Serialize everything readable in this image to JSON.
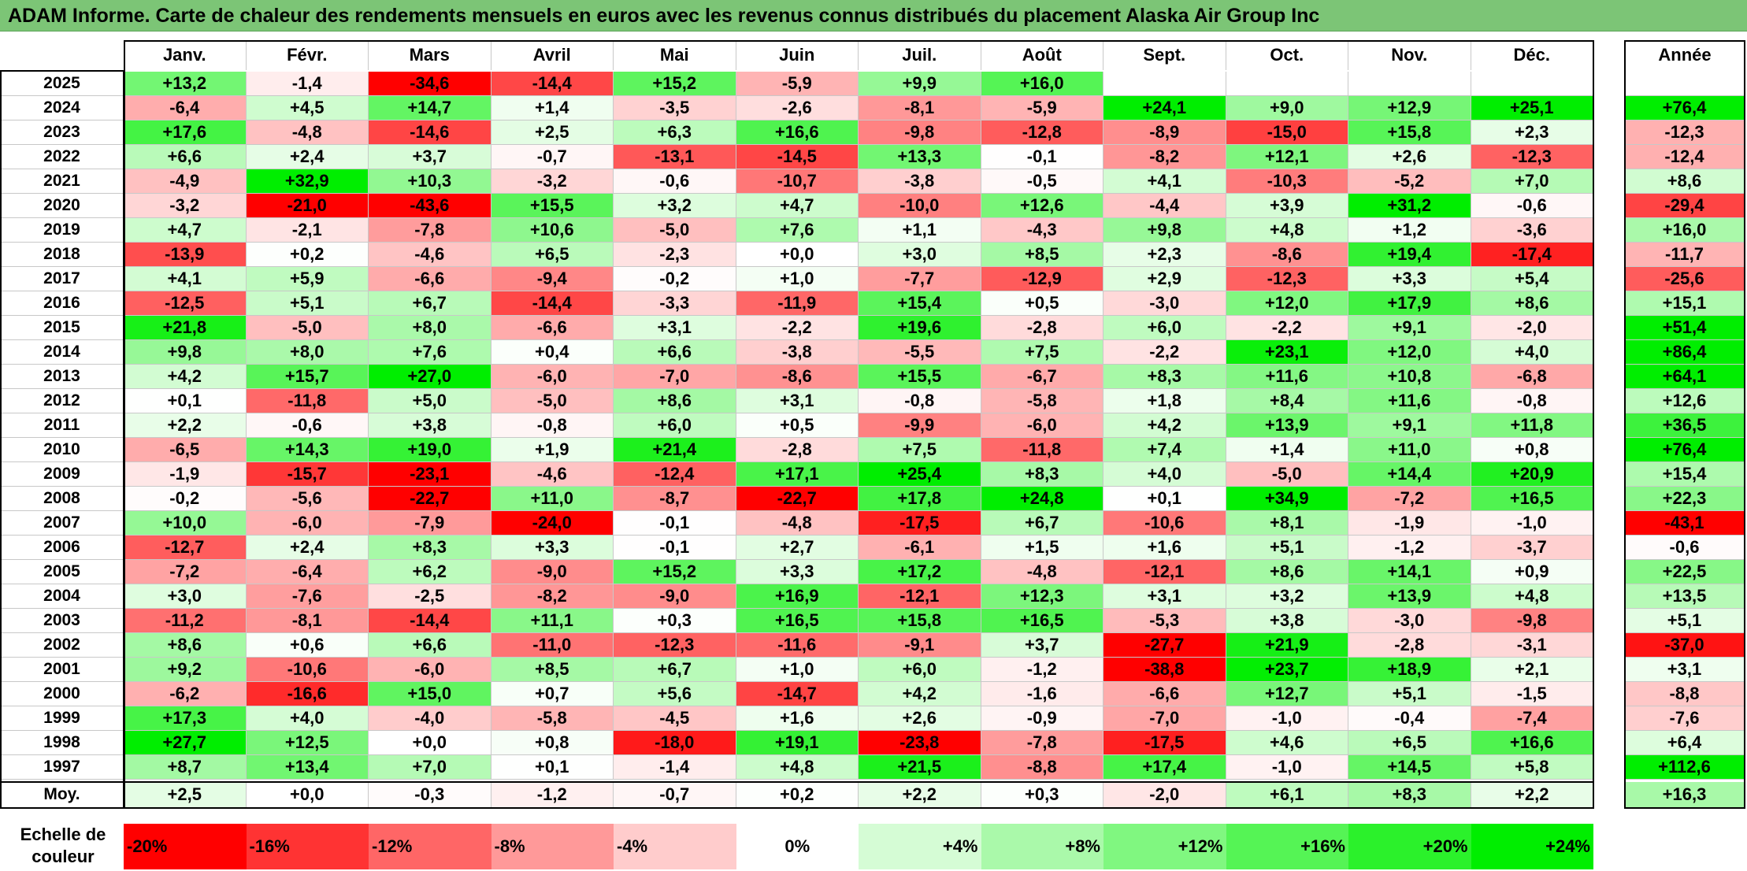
{
  "title": "ADAM Informe. Carte de chaleur des rendements mensuels en euros avec les revenus connus distribués du placement Alaska Air Group Inc",
  "colors": {
    "title_bg": "#7cc576",
    "negative_max": "#ff0000",
    "neutral": "#ffffff",
    "positive_max": "#00ee00"
  },
  "chart_data": {
    "type": "heatmap",
    "x": [
      "Janv.",
      "Févr.",
      "Mars",
      "Avril",
      "Mai",
      "Juin",
      "Juil.",
      "Août",
      "Sept.",
      "Oct.",
      "Nov.",
      "Déc."
    ],
    "annual_header": "Année",
    "rows": [
      {
        "year": "2025",
        "values": [
          "+13,2",
          "-1,4",
          "-34,6",
          "-14,4",
          "+15,2",
          "-5,9",
          "+9,9",
          "+16,0",
          "",
          "",
          "",
          ""
        ],
        "annual": ""
      },
      {
        "year": "2024",
        "values": [
          "-6,4",
          "+4,5",
          "+14,7",
          "+1,4",
          "-3,5",
          "-2,6",
          "-8,1",
          "-5,9",
          "+24,1",
          "+9,0",
          "+12,9",
          "+25,1"
        ],
        "annual": "+76,4"
      },
      {
        "year": "2023",
        "values": [
          "+17,6",
          "-4,8",
          "-14,6",
          "+2,5",
          "+6,3",
          "+16,6",
          "-9,8",
          "-12,8",
          "-8,9",
          "-15,0",
          "+15,8",
          "+2,3"
        ],
        "annual": "-12,3"
      },
      {
        "year": "2022",
        "values": [
          "+6,6",
          "+2,4",
          "+3,7",
          "-0,7",
          "-13,1",
          "-14,5",
          "+13,3",
          "-0,1",
          "-8,2",
          "+12,1",
          "+2,6",
          "-12,3"
        ],
        "annual": "-12,4"
      },
      {
        "year": "2021",
        "values": [
          "-4,9",
          "+32,9",
          "+10,3",
          "-3,2",
          "-0,6",
          "-10,7",
          "-3,8",
          "-0,5",
          "+4,1",
          "-10,3",
          "-5,2",
          "+7,0"
        ],
        "annual": "+8,6"
      },
      {
        "year": "2020",
        "values": [
          "-3,2",
          "-21,0",
          "-43,6",
          "+15,5",
          "+3,2",
          "+4,7",
          "-10,0",
          "+12,6",
          "-4,4",
          "+3,9",
          "+31,2",
          "-0,6"
        ],
        "annual": "-29,4"
      },
      {
        "year": "2019",
        "values": [
          "+4,7",
          "-2,1",
          "-7,8",
          "+10,6",
          "-5,0",
          "+7,6",
          "+1,1",
          "-4,3",
          "+9,8",
          "+4,8",
          "+1,2",
          "-3,6"
        ],
        "annual": "+16,0"
      },
      {
        "year": "2018",
        "values": [
          "-13,9",
          "+0,2",
          "-4,6",
          "+6,5",
          "-2,3",
          "+0,0",
          "+3,0",
          "+8,5",
          "+2,3",
          "-8,6",
          "+19,4",
          "-17,4"
        ],
        "annual": "-11,7"
      },
      {
        "year": "2017",
        "values": [
          "+4,1",
          "+5,9",
          "-6,6",
          "-9,4",
          "-0,2",
          "+1,0",
          "-7,7",
          "-12,9",
          "+2,9",
          "-12,3",
          "+3,3",
          "+5,4"
        ],
        "annual": "-25,6"
      },
      {
        "year": "2016",
        "values": [
          "-12,5",
          "+5,1",
          "+6,7",
          "-14,4",
          "-3,3",
          "-11,9",
          "+15,4",
          "+0,5",
          "-3,0",
          "+12,0",
          "+17,9",
          "+8,6"
        ],
        "annual": "+15,1"
      },
      {
        "year": "2015",
        "values": [
          "+21,8",
          "-5,0",
          "+8,0",
          "-6,6",
          "+3,1",
          "-2,2",
          "+19,6",
          "-2,8",
          "+6,0",
          "-2,2",
          "+9,1",
          "-2,0"
        ],
        "annual": "+51,4"
      },
      {
        "year": "2014",
        "values": [
          "+9,8",
          "+8,0",
          "+7,6",
          "+0,4",
          "+6,6",
          "-3,8",
          "-5,5",
          "+7,5",
          "-2,2",
          "+23,1",
          "+12,0",
          "+4,0"
        ],
        "annual": "+86,4"
      },
      {
        "year": "2013",
        "values": [
          "+4,2",
          "+15,7",
          "+27,0",
          "-6,0",
          "-7,0",
          "-8,6",
          "+15,5",
          "-6,7",
          "+8,3",
          "+11,6",
          "+10,8",
          "-6,8"
        ],
        "annual": "+64,1"
      },
      {
        "year": "2012",
        "values": [
          "+0,1",
          "-11,8",
          "+5,0",
          "-5,0",
          "+8,6",
          "+3,1",
          "-0,8",
          "-5,8",
          "+1,8",
          "+8,4",
          "+11,6",
          "-0,8"
        ],
        "annual": "+12,6"
      },
      {
        "year": "2011",
        "values": [
          "+2,2",
          "-0,6",
          "+3,8",
          "-0,8",
          "+6,0",
          "+0,5",
          "-9,9",
          "-6,0",
          "+4,2",
          "+13,9",
          "+9,1",
          "+11,8"
        ],
        "annual": "+36,5"
      },
      {
        "year": "2010",
        "values": [
          "-6,5",
          "+14,3",
          "+19,0",
          "+1,9",
          "+21,4",
          "-2,8",
          "+7,5",
          "-11,8",
          "+7,4",
          "+1,4",
          "+11,0",
          "+0,8"
        ],
        "annual": "+76,4"
      },
      {
        "year": "2009",
        "values": [
          "-1,9",
          "-15,7",
          "-23,1",
          "-4,6",
          "-12,4",
          "+17,1",
          "+25,4",
          "+8,3",
          "+4,0",
          "-5,0",
          "+14,4",
          "+20,9"
        ],
        "annual": "+15,4"
      },
      {
        "year": "2008",
        "values": [
          "-0,2",
          "-5,6",
          "-22,7",
          "+11,0",
          "-8,7",
          "-22,7",
          "+17,8",
          "+24,8",
          "+0,1",
          "+34,9",
          "-7,2",
          "+16,5"
        ],
        "annual": "+22,3"
      },
      {
        "year": "2007",
        "values": [
          "+10,0",
          "-6,0",
          "-7,9",
          "-24,0",
          "-0,1",
          "-4,8",
          "-17,5",
          "+6,7",
          "-10,6",
          "+8,1",
          "-1,9",
          "-1,0"
        ],
        "annual": "-43,1"
      },
      {
        "year": "2006",
        "values": [
          "-12,7",
          "+2,4",
          "+8,3",
          "+3,3",
          "-0,1",
          "+2,7",
          "-6,1",
          "+1,5",
          "+1,6",
          "+5,1",
          "-1,2",
          "-3,7"
        ],
        "annual": "-0,6"
      },
      {
        "year": "2005",
        "values": [
          "-7,2",
          "-6,4",
          "+6,2",
          "-9,0",
          "+15,2",
          "+3,3",
          "+17,2",
          "-4,8",
          "-12,1",
          "+8,6",
          "+14,1",
          "+0,9"
        ],
        "annual": "+22,5"
      },
      {
        "year": "2004",
        "values": [
          "+3,0",
          "-7,6",
          "-2,5",
          "-8,2",
          "-9,0",
          "+16,9",
          "-12,1",
          "+12,3",
          "+3,1",
          "+3,2",
          "+13,9",
          "+4,8"
        ],
        "annual": "+13,5"
      },
      {
        "year": "2003",
        "values": [
          "-11,2",
          "-8,1",
          "-14,4",
          "+11,1",
          "+0,3",
          "+16,5",
          "+15,8",
          "+16,5",
          "-5,3",
          "+3,8",
          "-3,0",
          "-9,8"
        ],
        "annual": "+5,1"
      },
      {
        "year": "2002",
        "values": [
          "+8,6",
          "+0,6",
          "+6,6",
          "-11,0",
          "-12,3",
          "-11,6",
          "-9,1",
          "+3,7",
          "-27,7",
          "+21,9",
          "-2,8",
          "-3,1"
        ],
        "annual": "-37,0"
      },
      {
        "year": "2001",
        "values": [
          "+9,2",
          "-10,6",
          "-6,0",
          "+8,5",
          "+6,7",
          "+1,0",
          "+6,0",
          "-1,2",
          "-38,8",
          "+23,7",
          "+18,9",
          "+2,1"
        ],
        "annual": "+3,1"
      },
      {
        "year": "2000",
        "values": [
          "-6,2",
          "-16,6",
          "+15,0",
          "+0,7",
          "+5,6",
          "-14,7",
          "+4,2",
          "-1,6",
          "-6,6",
          "+12,7",
          "+5,1",
          "-1,5"
        ],
        "annual": "-8,8"
      },
      {
        "year": "1999",
        "values": [
          "+17,3",
          "+4,0",
          "-4,0",
          "-5,8",
          "-4,5",
          "+1,6",
          "+2,6",
          "-0,9",
          "-7,0",
          "-1,0",
          "-0,4",
          "-7,4"
        ],
        "annual": "-7,6"
      },
      {
        "year": "1998",
        "values": [
          "+27,7",
          "+12,5",
          "+0,0",
          "+0,8",
          "-18,0",
          "+19,1",
          "-23,8",
          "-7,8",
          "-17,5",
          "+4,6",
          "+6,5",
          "+16,6"
        ],
        "annual": "+6,4"
      },
      {
        "year": "1997",
        "values": [
          "+8,7",
          "+13,4",
          "+7,0",
          "+0,1",
          "-1,4",
          "+4,8",
          "+21,5",
          "-8,8",
          "+17,4",
          "-1,0",
          "+14,5",
          "+5,8"
        ],
        "annual": "+112,6"
      }
    ],
    "average": {
      "label": "Moy.",
      "values": [
        "+2,5",
        "+0,0",
        "-0,3",
        "-1,2",
        "-0,7",
        "+0,2",
        "+2,2",
        "+0,3",
        "-2,0",
        "+6,1",
        "+8,3",
        "+2,2"
      ],
      "annual": "+16,3"
    },
    "color_scale": {
      "label_line1": "Echelle de",
      "label_line2": "couleur",
      "stops": [
        "-20%",
        "-16%",
        "-12%",
        "-8%",
        "-4%",
        "0%",
        "+4%",
        "+8%",
        "+12%",
        "+16%",
        "+20%",
        "+24%"
      ]
    }
  }
}
